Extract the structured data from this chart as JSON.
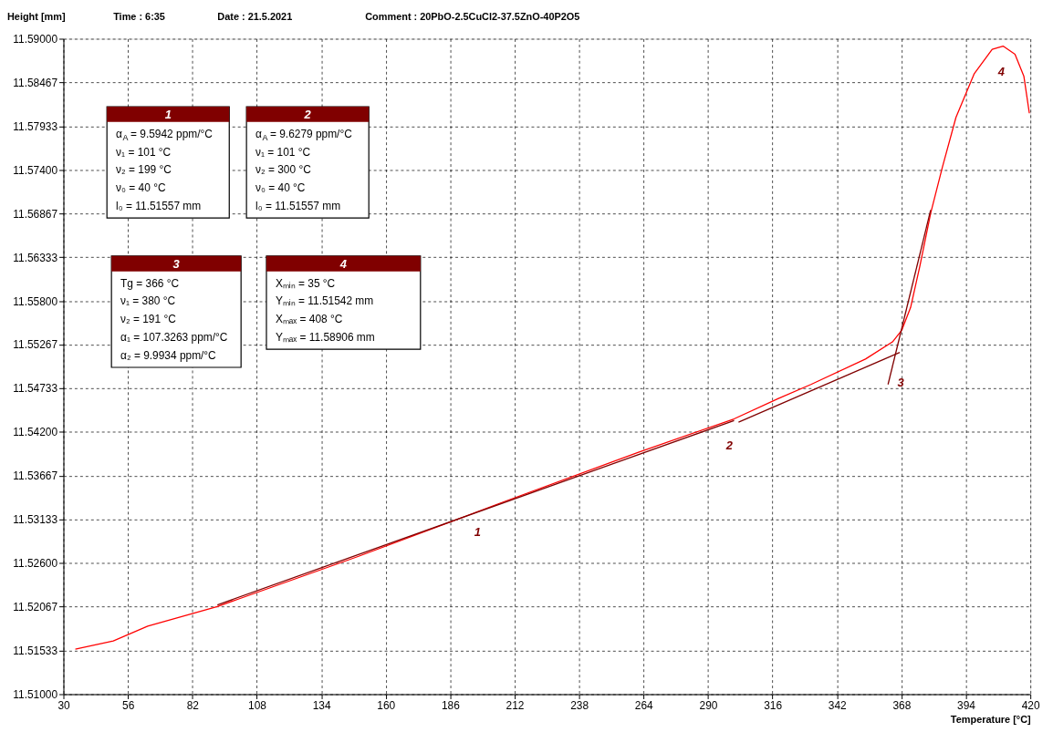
{
  "chart_data": {
    "type": "line",
    "ylabel": "Height [mm]",
    "xlabel": "Temperature [°C]",
    "xlim": [
      30,
      420
    ],
    "xticks": [
      30,
      56,
      82,
      108,
      134,
      160,
      186,
      212,
      238,
      264,
      290,
      316,
      342,
      368,
      394,
      420
    ],
    "ylim": [
      11.51,
      11.59
    ],
    "yticks": [
      {
        "value": 11.51,
        "label": "11.51000"
      },
      {
        "value": 11.51533,
        "label": "11.51533"
      },
      {
        "value": 11.52067,
        "label": "11.52067"
      },
      {
        "value": 11.526,
        "label": "11.52600"
      },
      {
        "value": 11.53133,
        "label": "11.53133"
      },
      {
        "value": 11.53667,
        "label": "11.53667"
      },
      {
        "value": 11.542,
        "label": "11.54200"
      },
      {
        "value": 11.54733,
        "label": "11.54733"
      },
      {
        "value": 11.55267,
        "label": "11.55267"
      },
      {
        "value": 11.558,
        "label": "11.55800"
      },
      {
        "value": 11.56333,
        "label": "11.56333"
      },
      {
        "value": 11.56867,
        "label": "11.56867"
      },
      {
        "value": 11.574,
        "label": "11.57400"
      },
      {
        "value": 11.57933,
        "label": "11.57933"
      },
      {
        "value": 11.58467,
        "label": "11.58467"
      },
      {
        "value": 11.59,
        "label": "11.59000"
      }
    ],
    "grid": true,
    "series": [
      {
        "color": "#ff0000",
        "x": [
          34.8,
          50.1,
          64.0,
          92.1,
          100.5,
          148.8,
          191.2,
          205.1,
          261.7,
          300.5,
          318.4,
          331.5,
          353.5,
          364.4,
          368.1,
          371.7,
          375.4,
          379.8,
          384.5,
          390.0,
          397.3,
          404.6,
          409.0,
          413.8,
          417.4,
          419.6
        ],
        "values": [
          11.5155,
          11.5165,
          11.5183,
          11.5207,
          11.5216,
          11.5268,
          11.5316,
          11.5332,
          11.5395,
          11.5436,
          11.5461,
          11.5478,
          11.5509,
          11.553,
          11.5544,
          11.5572,
          11.5622,
          11.5687,
          11.5743,
          11.5804,
          11.5857,
          11.5887,
          11.5891,
          11.5881,
          11.5854,
          11.5809
        ]
      },
      {
        "color": "#800000",
        "x": [
          92.1,
          300.5
        ],
        "values": [
          11.5209,
          11.5434
        ]
      },
      {
        "color": "#800000",
        "x": [
          302.3,
          367.3
        ],
        "values": [
          11.5432,
          11.5517
        ]
      },
      {
        "color": "#800000",
        "x": [
          362.6,
          379.8
        ],
        "values": [
          11.5478,
          11.5691
        ]
      }
    ],
    "annotations": [
      "Time : 6:35",
      "Date : 21.5.2021",
      "Comment : 20PbO-2.5CuCl2-37.5ZnO-40P2O5",
      "1\nα$_{A}$ = 9.5942 ppm/°C\nν₁ = 101 °C\nν₂ = 199 °C\nν₀ = 40 °C\nl₀ = 11.51557 mm",
      "2\nα$_{A}$ = 9.6279 ppm/°C\nν₁ = 101 °C\nν₂ = 300 °C\nν₀ = 40 °C\nl₀ = 11.51557 mm",
      "3\nTg = 366 °C\nν₁ = 380 °C\nν₂ = 191 °C\nα₁ = 107.3263 ppm/°C\nα₂ = 9.9934 ppm/°C",
      "4\nXₘᵢₙ = 35 °C\nYₘᵢₙ = 11.51542 mm\nXₘₐₓ = 408 °C\nYₘₐₓ = 11.58906 mm",
      "1",
      "2",
      "3",
      "4"
    ]
  }
}
